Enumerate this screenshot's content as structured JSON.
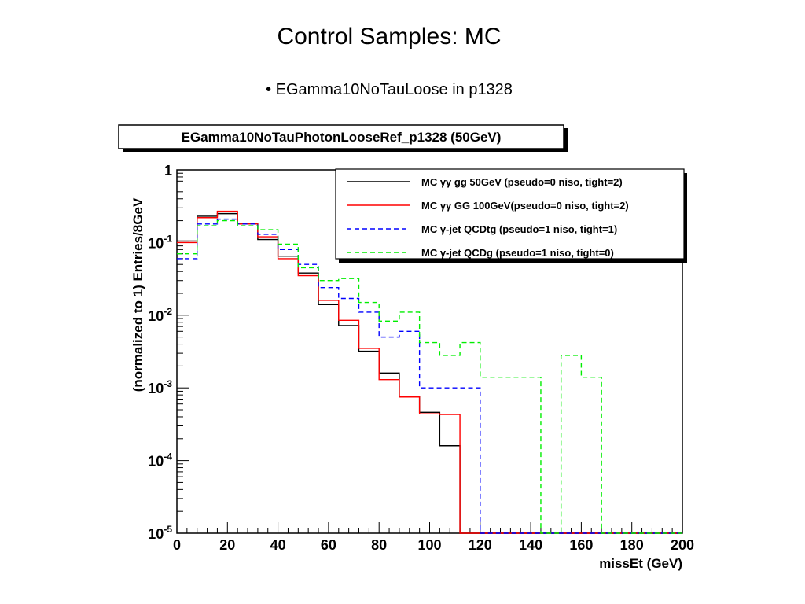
{
  "slide": {
    "title": "Control Samples: MC",
    "bullet": "• EGamma10NoTauLoose in p1328"
  },
  "chart_data": {
    "type": "line",
    "title": "EGamma10NoTauPhotonLooseRef_p1328 (50GeV)",
    "xlabel": "missEt (GeV)",
    "ylabel": "(normalized to 1) Entries/8GeV",
    "xlim": [
      0,
      200
    ],
    "ylim": [
      1e-05,
      1
    ],
    "yscale": "log",
    "x_ticks": [
      "0",
      "20",
      "40",
      "60",
      "80",
      "100",
      "120",
      "140",
      "160",
      "180",
      "200"
    ],
    "y_ticks": [
      {
        "base": "1",
        "exp": ""
      },
      {
        "base": "10",
        "exp": "-1"
      },
      {
        "base": "10",
        "exp": "-2"
      },
      {
        "base": "10",
        "exp": "-3"
      },
      {
        "base": "10",
        "exp": "-4"
      },
      {
        "base": "10",
        "exp": "-5"
      }
    ],
    "bin_edges": [
      0,
      8,
      16,
      24,
      32,
      40,
      48,
      56,
      64,
      72,
      80,
      88,
      96,
      104,
      112,
      120,
      128,
      136,
      144,
      152,
      160,
      168,
      176,
      184,
      192,
      200
    ],
    "legend_position": "top-right",
    "grid": false,
    "series": [
      {
        "name": "MC γγ gg 50GeV (pseudo=0 niso, tight=2)",
        "color": "#000000",
        "dash": "solid",
        "values": [
          0.105,
          0.23,
          0.25,
          0.18,
          0.11,
          0.065,
          0.038,
          0.014,
          0.0072,
          0.0032,
          0.0016,
          0.00075,
          0.00046,
          0.00016,
          0,
          0,
          0,
          0,
          0,
          0,
          0,
          0,
          0,
          0,
          0
        ]
      },
      {
        "name": "MC γγ GG 100GeV(pseudo=0 niso, tight=2)",
        "color": "#ff0000",
        "dash": "solid",
        "values": [
          0.1,
          0.22,
          0.27,
          0.18,
          0.12,
          0.06,
          0.035,
          0.016,
          0.0085,
          0.0035,
          0.0013,
          0.00075,
          0.00044,
          0.00043,
          0,
          0,
          0,
          0,
          0,
          0,
          0,
          0,
          0,
          0,
          0
        ]
      },
      {
        "name": "MC γ-jet QCDtg (pseudo=1 niso, tight=1)",
        "color": "#0000ff",
        "dash": "dashed",
        "values": [
          0.06,
          0.18,
          0.21,
          0.18,
          0.13,
          0.08,
          0.05,
          0.024,
          0.017,
          0.011,
          0.005,
          0.006,
          0.001,
          0.001,
          0.001,
          0,
          0,
          0,
          0,
          0,
          0,
          0,
          0,
          0,
          0
        ]
      },
      {
        "name": "MC γ-jet QCDg  (pseudo=1 niso, tight=0)",
        "color": "#00ee00",
        "dash": "dashed",
        "values": [
          0.07,
          0.17,
          0.2,
          0.17,
          0.15,
          0.095,
          0.045,
          0.03,
          0.032,
          0.015,
          0.0083,
          0.011,
          0.0042,
          0.0028,
          0.0042,
          0.0014,
          0.0014,
          0.0014,
          0,
          0.0028,
          0.0014,
          0,
          0,
          0,
          0
        ]
      }
    ]
  }
}
